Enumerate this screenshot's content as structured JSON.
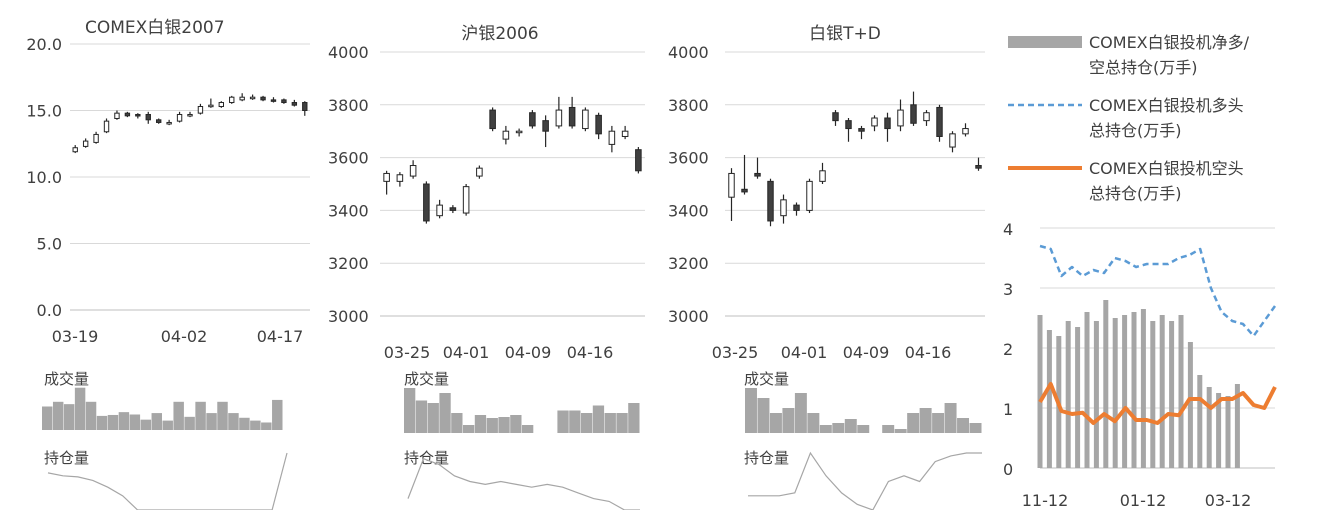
{
  "chart_data": [
    {
      "type": "candlestick",
      "title": "COMEX白银2007",
      "ylim": [
        0,
        20
      ],
      "yticks": [
        "0.0",
        "5.0",
        "10.0",
        "15.0",
        "20.0"
      ],
      "x_tick_labels": [
        "03-19",
        "04-02",
        "04-17"
      ],
      "x_tick_index": [
        0,
        9,
        19
      ],
      "series": [
        {
          "name": "",
          "open": 11.9,
          "close": 12.2,
          "high": 12.4,
          "low": 11.8
        },
        {
          "name": "",
          "open": 12.3,
          "close": 12.7,
          "high": 12.9,
          "low": 12.2
        },
        {
          "name": "",
          "open": 12.6,
          "close": 13.2,
          "high": 13.4,
          "low": 12.5
        },
        {
          "name": "",
          "open": 13.4,
          "close": 14.2,
          "high": 14.4,
          "low": 13.3
        },
        {
          "name": "",
          "open": 14.4,
          "close": 14.8,
          "high": 15.0,
          "low": 14.3
        },
        {
          "name": "",
          "open": 14.8,
          "close": 14.6,
          "high": 14.9,
          "low": 14.5
        },
        {
          "name": "",
          "open": 14.7,
          "close": 14.6,
          "high": 14.8,
          "low": 14.4
        },
        {
          "name": "",
          "open": 14.7,
          "close": 14.3,
          "high": 14.9,
          "low": 14.0
        },
        {
          "name": "",
          "open": 14.3,
          "close": 14.1,
          "high": 14.4,
          "low": 14.0
        },
        {
          "name": "",
          "open": 14.1,
          "close": 14.1,
          "high": 14.3,
          "low": 13.9
        },
        {
          "name": "",
          "open": 14.2,
          "close": 14.7,
          "high": 14.9,
          "low": 14.1
        },
        {
          "name": "",
          "open": 14.6,
          "close": 14.7,
          "high": 14.9,
          "low": 14.5
        },
        {
          "name": "",
          "open": 14.8,
          "close": 15.3,
          "high": 15.5,
          "low": 14.7
        },
        {
          "name": "",
          "open": 15.3,
          "close": 15.4,
          "high": 15.9,
          "low": 15.2
        },
        {
          "name": "",
          "open": 15.3,
          "close": 15.6,
          "high": 15.7,
          "low": 15.2
        },
        {
          "name": "",
          "open": 15.6,
          "close": 16.0,
          "high": 16.1,
          "low": 15.5
        },
        {
          "name": "",
          "open": 15.8,
          "close": 16.0,
          "high": 16.3,
          "low": 15.7
        },
        {
          "name": "",
          "open": 15.9,
          "close": 16.0,
          "high": 16.2,
          "low": 15.8
        },
        {
          "name": "",
          "open": 16.0,
          "close": 15.8,
          "high": 16.1,
          "low": 15.7
        },
        {
          "name": "",
          "open": 15.8,
          "close": 15.7,
          "high": 16.0,
          "low": 15.6
        },
        {
          "name": "",
          "open": 15.8,
          "close": 15.6,
          "high": 15.9,
          "low": 15.5
        },
        {
          "name": "",
          "open": 15.6,
          "close": 15.4,
          "high": 15.8,
          "low": 15.3
        },
        {
          "name": "",
          "open": 15.6,
          "close": 15.0,
          "high": 15.7,
          "low": 14.6
        }
      ],
      "sub_volume_label": "成交量",
      "volume": [
        0.5,
        0.6,
        0.55,
        0.9,
        0.6,
        0.3,
        0.32,
        0.38,
        0.33,
        0.22,
        0.36,
        0.2,
        0.6,
        0.28,
        0.6,
        0.36,
        0.6,
        0.36,
        0.26,
        0.2,
        0.16,
        0.64
      ],
      "sub_oi_label": "持仓量",
      "open_interest": [
        0.65,
        0.6,
        0.58,
        0.52,
        0.4,
        0.25,
        0.0,
        0.0,
        0.0,
        0.0,
        0.0,
        0.0,
        0.0,
        0.0,
        0.0,
        0.0,
        1.0
      ]
    },
    {
      "type": "candlestick",
      "title": "沪银2006",
      "ylim": [
        3000,
        4000
      ],
      "yticks": [
        "3000",
        "3200",
        "3400",
        "3600",
        "3800",
        "4000"
      ],
      "x_tick_labels": [
        "03-25",
        "04-01",
        "04-09",
        "04-16"
      ],
      "x_tick_index": [
        0,
        5,
        11,
        16
      ],
      "series": [
        {
          "name": "",
          "open": 3510,
          "close": 3540,
          "high": 3550,
          "low": 3460
        },
        {
          "name": "",
          "open": 3510,
          "close": 3535,
          "high": 3545,
          "low": 3490
        },
        {
          "name": "",
          "open": 3530,
          "close": 3570,
          "high": 3590,
          "low": 3520
        },
        {
          "name": "",
          "open": 3500,
          "close": 3360,
          "high": 3510,
          "low": 3350
        },
        {
          "name": "",
          "open": 3380,
          "close": 3420,
          "high": 3440,
          "low": 3370
        },
        {
          "name": "",
          "open": 3410,
          "close": 3400,
          "high": 3420,
          "low": 3390
        },
        {
          "name": "",
          "open": 3390,
          "close": 3490,
          "high": 3500,
          "low": 3380
        },
        {
          "name": "",
          "open": 3530,
          "close": 3560,
          "high": 3570,
          "low": 3520
        },
        {
          "name": "",
          "open": 3780,
          "close": 3710,
          "high": 3790,
          "low": 3700
        },
        {
          "name": "",
          "open": 3670,
          "close": 3700,
          "high": 3720,
          "low": 3650
        },
        {
          "name": "",
          "open": 3700,
          "close": 3700,
          "high": 3710,
          "low": 3680
        },
        {
          "name": "",
          "open": 3770,
          "close": 3720,
          "high": 3780,
          "low": 3710
        },
        {
          "name": "",
          "open": 3740,
          "close": 3700,
          "high": 3760,
          "low": 3640
        },
        {
          "name": "",
          "open": 3720,
          "close": 3780,
          "high": 3830,
          "low": 3710
        },
        {
          "name": "",
          "open": 3790,
          "close": 3720,
          "high": 3830,
          "low": 3710
        },
        {
          "name": "",
          "open": 3710,
          "close": 3780,
          "high": 3790,
          "low": 3700
        },
        {
          "name": "",
          "open": 3760,
          "close": 3690,
          "high": 3770,
          "low": 3670
        },
        {
          "name": "",
          "open": 3650,
          "close": 3700,
          "high": 3720,
          "low": 3620
        },
        {
          "name": "",
          "open": 3680,
          "close": 3700,
          "high": 3720,
          "low": 3670
        },
        {
          "name": "",
          "open": 3630,
          "close": 3550,
          "high": 3640,
          "low": 3540
        }
      ],
      "sub_volume_label": "成交量",
      "volume": [
        0.9,
        0.65,
        0.6,
        0.8,
        0.4,
        0.16,
        0.36,
        0.3,
        0.32,
        0.36,
        0.16,
        0.0,
        0.0,
        0.45,
        0.45,
        0.4,
        0.55,
        0.4,
        0.4,
        0.6
      ],
      "sub_oi_label": "持仓量",
      "open_interest": [
        0.2,
        0.9,
        0.8,
        0.6,
        0.5,
        0.45,
        0.5,
        0.45,
        0.4,
        0.45,
        0.4,
        0.3,
        0.2,
        0.15,
        0.0,
        0.0
      ]
    },
    {
      "type": "candlestick",
      "title": "白银T+D",
      "ylim": [
        3000,
        4000
      ],
      "yticks": [
        "3000",
        "3200",
        "3400",
        "3600",
        "3800",
        "4000"
      ],
      "x_tick_labels": [
        "03-25",
        "04-01",
        "04-09",
        "04-16"
      ],
      "x_tick_index": [
        0,
        5,
        11,
        16
      ],
      "series": [
        {
          "name": "",
          "open": 3450,
          "close": 3540,
          "high": 3560,
          "low": 3360
        },
        {
          "name": "",
          "open": 3480,
          "close": 3470,
          "high": 3610,
          "low": 3460
        },
        {
          "name": "",
          "open": 3540,
          "close": 3530,
          "high": 3600,
          "low": 3520
        },
        {
          "name": "",
          "open": 3510,
          "close": 3360,
          "high": 3520,
          "low": 3340
        },
        {
          "name": "",
          "open": 3380,
          "close": 3440,
          "high": 3460,
          "low": 3350
        },
        {
          "name": "",
          "open": 3420,
          "close": 3400,
          "high": 3430,
          "low": 3380
        },
        {
          "name": "",
          "open": 3400,
          "close": 3510,
          "high": 3520,
          "low": 3390
        },
        {
          "name": "",
          "open": 3510,
          "close": 3550,
          "high": 3580,
          "low": 3500
        },
        {
          "name": "",
          "open": 3770,
          "close": 3740,
          "high": 3780,
          "low": 3720
        },
        {
          "name": "",
          "open": 3740,
          "close": 3710,
          "high": 3750,
          "low": 3660
        },
        {
          "name": "",
          "open": 3710,
          "close": 3700,
          "high": 3720,
          "low": 3670
        },
        {
          "name": "",
          "open": 3720,
          "close": 3750,
          "high": 3760,
          "low": 3700
        },
        {
          "name": "",
          "open": 3750,
          "close": 3710,
          "high": 3770,
          "low": 3660
        },
        {
          "name": "",
          "open": 3720,
          "close": 3780,
          "high": 3820,
          "low": 3700
        },
        {
          "name": "",
          "open": 3800,
          "close": 3730,
          "high": 3850,
          "low": 3720
        },
        {
          "name": "",
          "open": 3740,
          "close": 3770,
          "high": 3780,
          "low": 3720
        },
        {
          "name": "",
          "open": 3790,
          "close": 3680,
          "high": 3800,
          "low": 3660
        },
        {
          "name": "",
          "open": 3640,
          "close": 3690,
          "high": 3700,
          "low": 3620
        },
        {
          "name": "",
          "open": 3690,
          "close": 3710,
          "high": 3730,
          "low": 3680
        },
        {
          "name": "",
          "open": 3570,
          "close": 3560,
          "high": 3600,
          "low": 3550
        }
      ],
      "sub_volume_label": "成交量",
      "volume": [
        0.9,
        0.7,
        0.4,
        0.5,
        0.8,
        0.4,
        0.16,
        0.2,
        0.28,
        0.16,
        0.0,
        0.16,
        0.08,
        0.4,
        0.5,
        0.4,
        0.6,
        0.3,
        0.2
      ],
      "sub_oi_label": "持仓量",
      "open_interest": [
        0.25,
        0.25,
        0.25,
        0.3,
        1.0,
        0.6,
        0.3,
        0.1,
        0.0,
        0.5,
        0.6,
        0.5,
        0.85,
        0.95,
        1.0,
        1.0
      ]
    },
    {
      "type": "bar+line",
      "ylim": [
        0,
        4
      ],
      "yticks": [
        "0",
        "1",
        "2",
        "3",
        "4"
      ],
      "x_tick_labels": [
        "11-12",
        "01-12",
        "03-12"
      ],
      "x_tick_index": [
        0,
        9,
        18
      ],
      "categories_count": 26,
      "series": [
        {
          "name": "COMEX白银投机净多/空总持仓(万手)",
          "kind": "bar",
          "color": "#a6a6a6",
          "values": [
            2.55,
            2.3,
            2.2,
            2.45,
            2.35,
            2.6,
            2.45,
            2.8,
            2.5,
            2.55,
            2.6,
            2.65,
            2.45,
            2.55,
            2.45,
            2.55,
            2.1,
            1.55,
            1.35,
            1.25,
            1.2,
            1.4
          ]
        },
        {
          "name": "COMEX白银投机多头总持仓(万手)",
          "kind": "line",
          "dash": true,
          "color": "#5b9bd5",
          "values": [
            3.7,
            3.65,
            3.2,
            3.35,
            3.2,
            3.3,
            3.25,
            3.5,
            3.45,
            3.35,
            3.4,
            3.4,
            3.4,
            3.5,
            3.55,
            3.65,
            3.0,
            2.6,
            2.45,
            2.4,
            2.2,
            2.45,
            2.7
          ]
        },
        {
          "name": "COMEX白银投机空头总持仓(万手)",
          "kind": "line",
          "dash": false,
          "color": "#ed7d31",
          "values": [
            1.1,
            1.4,
            0.95,
            0.9,
            0.92,
            0.75,
            0.9,
            0.78,
            1.0,
            0.8,
            0.8,
            0.75,
            0.9,
            0.88,
            1.15,
            1.15,
            1.0,
            1.15,
            1.15,
            1.25,
            1.05,
            1.0,
            1.35
          ]
        }
      ]
    }
  ]
}
